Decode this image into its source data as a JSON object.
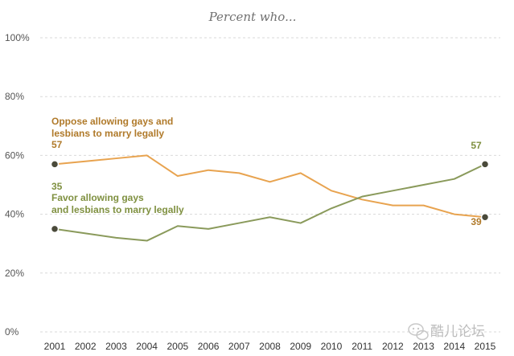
{
  "chart_data": {
    "type": "line",
    "subtitle": "Percent who...",
    "x": [
      2001,
      2002,
      2003,
      2004,
      2005,
      2006,
      2007,
      2008,
      2009,
      2010,
      2011,
      2012,
      2013,
      2014,
      2015
    ],
    "ylim": [
      0,
      100
    ],
    "yticks": [
      "0%",
      "20%",
      "40%",
      "60%",
      "80%",
      "100%"
    ],
    "xticks": [
      "2001",
      "2002",
      "2003",
      "2004",
      "2005",
      "2006",
      "2007",
      "2008",
      "2009",
      "2010",
      "2011",
      "2012",
      "2013",
      "2014",
      "2015"
    ],
    "grid": true,
    "series": [
      {
        "name": "Oppose allowing gays and lesbians to marry legally",
        "name_lines": [
          "Oppose allowing gays and",
          "lesbians to marry legally"
        ],
        "color": "#e8a34f",
        "label_color": "#b07a2a",
        "values": [
          57,
          58,
          59,
          60,
          53,
          55,
          54,
          51,
          54,
          48,
          45,
          43,
          43,
          40,
          39
        ],
        "start_label": "57",
        "end_label": "39"
      },
      {
        "name": "Favor allowing gays and lesbians to marry legally",
        "name_lines": [
          "Favor allowing gays",
          "and lesbians to marry legally"
        ],
        "color": "#8a9a5b",
        "label_color": "#7f9040",
        "values": [
          35,
          33.5,
          32,
          31,
          36,
          35,
          37,
          39,
          37,
          42,
          46,
          48,
          50,
          52,
          57
        ],
        "start_label": "35",
        "end_label": "57"
      }
    ]
  },
  "watermark": {
    "text": "酷儿论坛",
    "icon": "wechat-icon"
  }
}
